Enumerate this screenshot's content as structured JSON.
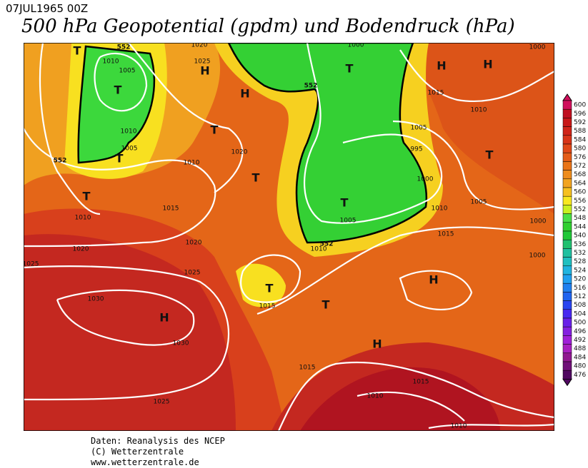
{
  "header": {
    "date": "07JUL1965 00Z",
    "title": "500 hPa Geopotential (gpdm) und Bodendruck (hPa)"
  },
  "colorbar": {
    "ticks": [
      600,
      596,
      592,
      588,
      584,
      580,
      576,
      572,
      568,
      564,
      560,
      556,
      552,
      548,
      544,
      540,
      536,
      532,
      528,
      524,
      520,
      516,
      512,
      508,
      504,
      500,
      496,
      492,
      488,
      484,
      480,
      476
    ],
    "colors": [
      "#d0105c",
      "#c01020",
      "#c81818",
      "#d02418",
      "#d83418",
      "#e04818",
      "#e45c18",
      "#ea7418",
      "#ee8c1c",
      "#f2a420",
      "#f6c020",
      "#f8e820",
      "#c8f020",
      "#48e048",
      "#30d030",
      "#20c838",
      "#20c070",
      "#20c0a0",
      "#20c0c0",
      "#20b4e0",
      "#20a0f0",
      "#2080f0",
      "#2064f0",
      "#2844f0",
      "#4828f0",
      "#6820e8",
      "#8420e0",
      "#a020d8",
      "#a820c0",
      "#901890",
      "#701078",
      "#500860"
    ]
  },
  "map": {
    "highs": [
      "H",
      "H",
      "H",
      "H",
      "H",
      "H",
      "H"
    ],
    "lows": [
      "T",
      "T",
      "T",
      "T",
      "T",
      "T",
      "T",
      "T",
      "T",
      "T",
      "T"
    ],
    "isobar_labels": [
      "1010",
      "1005",
      "1010",
      "1005",
      "1020",
      "1025",
      "1020",
      "1010",
      "1015",
      "1010",
      "1020",
      "1020",
      "1025",
      "1025",
      "1030",
      "1030",
      "1025",
      "1015",
      "1010",
      "1005",
      "1015",
      "1010",
      "1005",
      "1000",
      "1010",
      "1005",
      "1015",
      "1015",
      "1015",
      "1010",
      "1010",
      "995",
      "1000",
      "1000",
      "1000",
      "1000"
    ],
    "contour_labels": [
      "552",
      "552",
      "552",
      "552"
    ]
  },
  "footer": {
    "lines": [
      "Daten: Reanalysis des NCEP",
      "(C) Wetterzentrale",
      "www.wetterzentrale.de"
    ]
  }
}
